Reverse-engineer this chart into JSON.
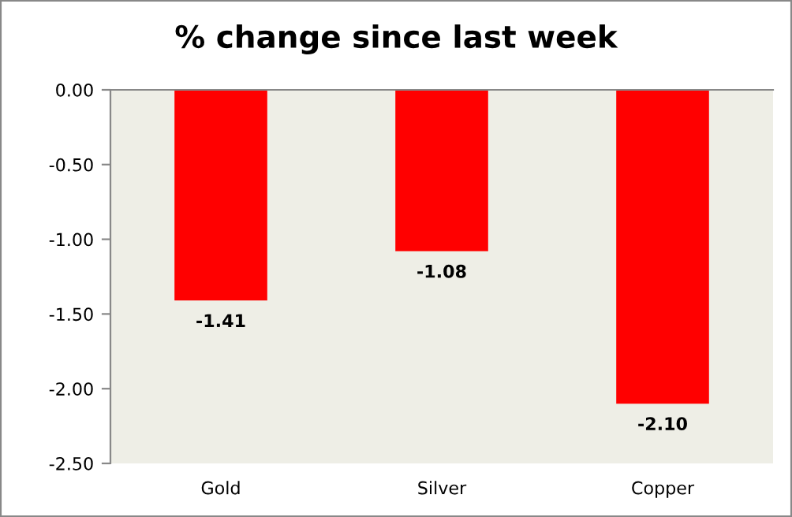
{
  "chart_data": {
    "type": "bar",
    "title": "% change since last week",
    "categories": [
      "Gold",
      "Silver",
      "Copper"
    ],
    "values": [
      -1.41,
      -1.08,
      -2.1
    ],
    "value_labels": [
      "-1.41",
      "-1.08",
      "-2.10"
    ],
    "color": "#ff0000",
    "ylim": [
      -2.5,
      0
    ],
    "yticks": [
      {
        "value": 0,
        "label": "0.00"
      },
      {
        "value": -0.5,
        "label": "-0.50"
      },
      {
        "value": -1.0,
        "label": "-1.00"
      },
      {
        "value": -1.5,
        "label": "-1.50"
      },
      {
        "value": -2.0,
        "label": "-2.00"
      },
      {
        "value": -2.5,
        "label": "-2.50"
      }
    ],
    "grid": false
  }
}
